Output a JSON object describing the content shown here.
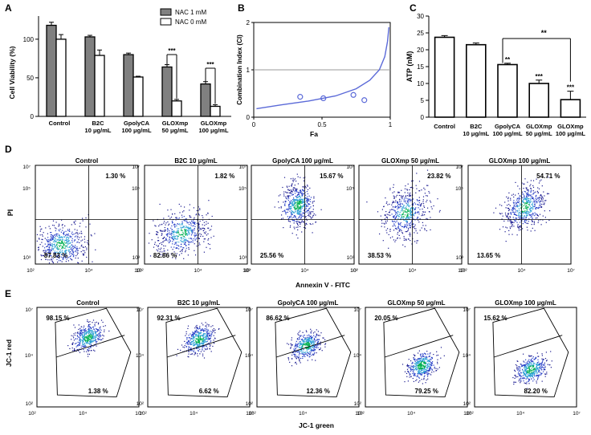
{
  "panels": {
    "A": {
      "letter": "A",
      "chart_data": {
        "type": "bar",
        "ylabel": "Cell Viability (%)",
        "ylim": [
          0,
          130
        ],
        "yticks": [
          0,
          50,
          100
        ],
        "categories": [
          [
            "Control"
          ],
          [
            "B2C",
            "10 μg/mL"
          ],
          [
            "GpolyCA",
            "100 μg/mL"
          ],
          [
            "GLOXmp",
            "50 μg/mL"
          ],
          [
            "GLOXmp",
            "100 μg/mL"
          ]
        ],
        "series": [
          {
            "name": "NAC 1 mM",
            "color": "#808080",
            "values": [
              118,
              103,
              80,
              64,
              42
            ],
            "errors": [
              4,
              2,
              2,
              3,
              3
            ]
          },
          {
            "name": "NAC 0 mM",
            "color": "#ffffff",
            "values": [
              100,
              79,
              51,
              20,
              13
            ],
            "errors": [
              6,
              7,
              1,
              2,
              2
            ]
          }
        ],
        "significance": [
          {
            "group": 3,
            "label": "***"
          },
          {
            "group": 4,
            "label": "***"
          }
        ]
      }
    },
    "B": {
      "letter": "B",
      "chart_data": {
        "type": "scatter",
        "xlabel": "Fa",
        "ylabel": "Combination Index (CI)",
        "xlim": [
          0,
          1
        ],
        "ylim": [
          0,
          2
        ],
        "xticks": [
          0,
          0.5,
          1
        ],
        "yticks": [
          0,
          1,
          2
        ],
        "points": [
          [
            0.34,
            0.43
          ],
          [
            0.51,
            0.4
          ],
          [
            0.73,
            0.47
          ],
          [
            0.81,
            0.36
          ]
        ],
        "reference_line": 1,
        "curve": [
          [
            0.02,
            0.18
          ],
          [
            0.2,
            0.26
          ],
          [
            0.4,
            0.34
          ],
          [
            0.6,
            0.45
          ],
          [
            0.75,
            0.6
          ],
          [
            0.85,
            0.78
          ],
          [
            0.92,
            1.0
          ],
          [
            0.96,
            1.28
          ],
          [
            0.98,
            1.6
          ],
          [
            0.99,
            1.9
          ]
        ]
      }
    },
    "C": {
      "letter": "C",
      "chart_data": {
        "type": "bar",
        "ylabel": "ATP (nM)",
        "ylim": [
          0,
          30
        ],
        "yticks": [
          0,
          5,
          10,
          15,
          20,
          25,
          30
        ],
        "categories": [
          [
            "Control"
          ],
          [
            "B2C",
            "10 μg/mL"
          ],
          [
            "GpolyCA",
            "100 μg/mL"
          ],
          [
            "GLOXmp",
            "50 μg/mL"
          ],
          [
            "GLOXmp",
            "100 μg/mL"
          ]
        ],
        "values": [
          23.7,
          21.5,
          15.6,
          10.0,
          5.2
        ],
        "errors": [
          0.5,
          0.5,
          0.4,
          1.0,
          2.5
        ],
        "stars": [
          "",
          "",
          "**",
          "***",
          "***"
        ],
        "bracket_label": "**"
      }
    },
    "D": {
      "letter": "D",
      "ylabel": "PI",
      "xlabel": "Annexin V - FITC",
      "axis_min": "10²",
      "axis_mid1": "10³",
      "axis_mid2": "10⁴",
      "axis_mid3": "10⁵",
      "axis_max": "10⁷",
      "plots": [
        {
          "title": "Control",
          "upper_right": "1.30 %",
          "lower_left": "87.83 %"
        },
        {
          "title": "B2C 10 μg/mL",
          "upper_right": "1.82 %",
          "lower_left": "82.86 %"
        },
        {
          "title": "GpolyCA 100 μg/mL",
          "upper_right": "15.67 %",
          "lower_left": "25.56 %"
        },
        {
          "title": "GLOXmp 50 μg/mL",
          "upper_right": "23.82 %",
          "lower_left": "38.53 %"
        },
        {
          "title": "GLOXmp 100 μg/mL",
          "upper_right": "54.71 %",
          "lower_left": "13.65 %"
        }
      ]
    },
    "E": {
      "letter": "E",
      "ylabel": "JC-1 red",
      "xlabel": "JC-1 green",
      "axis_min": "10²",
      "axis_mid": "10⁴",
      "axis_max": "10⁷",
      "plots": [
        {
          "title": "Control",
          "red": "98.15 %",
          "green": "1.38 %"
        },
        {
          "title": "B2C 10 μg/mL",
          "red": "92.31 %",
          "green": "6.62 %"
        },
        {
          "title": "GpolyCA 100 μg/mL",
          "red": "86.62 %",
          "green": "12.36 %"
        },
        {
          "title": "GLOXmp 50 μg/mL",
          "red": "20.05 %",
          "green": "79.25 %"
        },
        {
          "title": "GLOXmp 100 μg/mL",
          "red": "15.62 %",
          "green": "82.20 %"
        }
      ]
    }
  }
}
